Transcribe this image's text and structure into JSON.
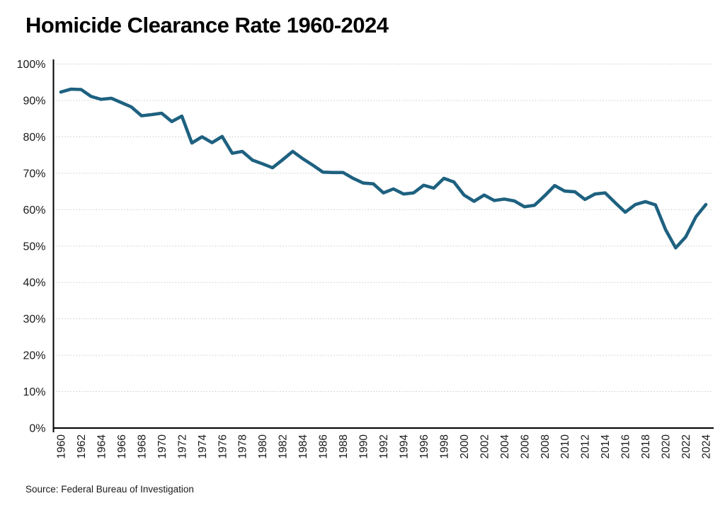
{
  "page": {
    "title": "Homicide Clearance Rate 1960-2024",
    "source": "Source: Federal Bureau of Investigation"
  },
  "chart_data": {
    "type": "line",
    "title": "Homicide Clearance Rate 1960-2024",
    "xlabel": "",
    "ylabel": "",
    "x": [
      1960,
      1961,
      1962,
      1963,
      1964,
      1965,
      1966,
      1967,
      1968,
      1969,
      1970,
      1971,
      1972,
      1973,
      1974,
      1975,
      1976,
      1977,
      1978,
      1979,
      1980,
      1981,
      1982,
      1983,
      1984,
      1985,
      1986,
      1987,
      1988,
      1989,
      1990,
      1991,
      1992,
      1993,
      1994,
      1995,
      1996,
      1997,
      1998,
      1999,
      2000,
      2001,
      2002,
      2003,
      2004,
      2005,
      2006,
      2007,
      2008,
      2009,
      2010,
      2011,
      2012,
      2013,
      2014,
      2015,
      2016,
      2017,
      2018,
      2019,
      2020,
      2021,
      2022,
      2023,
      2024
    ],
    "series": [
      {
        "name": "Homicide clearance rate (%)",
        "values": [
          92.3,
          93.1,
          93.0,
          91.1,
          90.3,
          90.6,
          89.4,
          88.2,
          85.8,
          86.1,
          86.5,
          84.2,
          85.7,
          78.3,
          80.0,
          78.4,
          80.1,
          75.5,
          76.0,
          73.6,
          72.6,
          71.5,
          73.7,
          76.0,
          74.0,
          72.2,
          70.3,
          70.2,
          70.2,
          68.6,
          67.3,
          67.1,
          64.6,
          65.7,
          64.3,
          64.6,
          66.7,
          65.9,
          68.6,
          67.6,
          64.0,
          62.3,
          64.0,
          62.5,
          62.9,
          62.4,
          60.8,
          61.2,
          63.8,
          66.6,
          65.1,
          64.9,
          62.8,
          64.3,
          64.6,
          61.9,
          59.3,
          61.4,
          62.2,
          61.3,
          54.5,
          49.5,
          52.5,
          58.0,
          61.4
        ]
      }
    ],
    "ylim": [
      0,
      100
    ],
    "y_tick_step": 10,
    "y_tick_labels": [
      "0%",
      "10%",
      "20%",
      "30%",
      "40%",
      "50%",
      "60%",
      "70%",
      "80%",
      "90%",
      "100%"
    ],
    "x_tick_step": 2,
    "x_tick_labels": [
      "1960",
      "1962",
      "1964",
      "1966",
      "1968",
      "1970",
      "1972",
      "1974",
      "1976",
      "1978",
      "1980",
      "1982",
      "1984",
      "1986",
      "1988",
      "1990",
      "1992",
      "1994",
      "1996",
      "1998",
      "2000",
      "2002",
      "2004",
      "2006",
      "2008",
      "2010",
      "2012",
      "2014",
      "2016",
      "2018",
      "2020",
      "2022",
      "2024"
    ],
    "grid": "horizontal-dotted",
    "legend": "none",
    "line_color": "#1e6180",
    "axis_color": "#000000",
    "grid_color": "#c9c9c9",
    "background": "#ffffff",
    "source": "Source: Federal Bureau of Investigation"
  }
}
